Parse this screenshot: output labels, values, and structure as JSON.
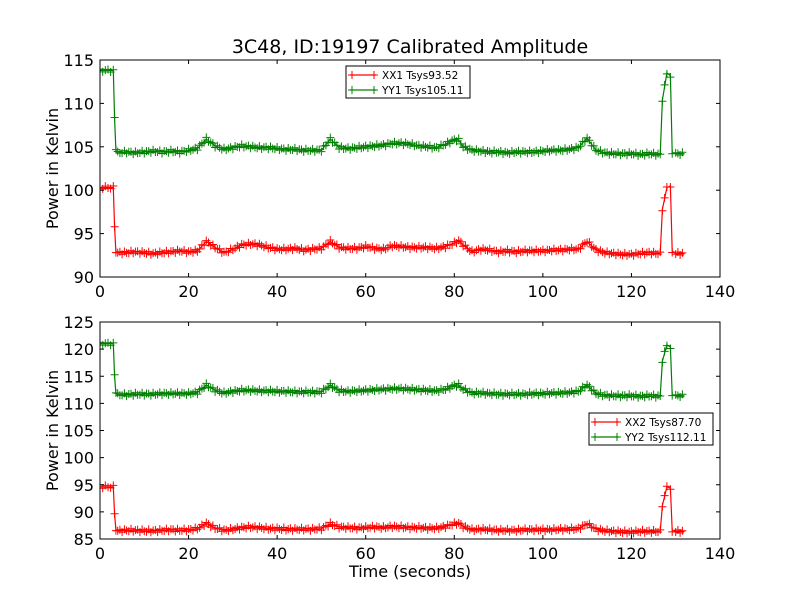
{
  "figure": {
    "title": "3C48, ID:19197 Calibrated Amplitude",
    "xlabel": "Time (seconds)"
  },
  "chart_data": [
    {
      "type": "line",
      "title": "3C48, ID:19197 Calibrated Amplitude",
      "xlabel": "",
      "ylabel": "Power in Kelvin",
      "xlim": [
        0,
        140
      ],
      "ylim": [
        90,
        115
      ],
      "xticks": [
        0,
        20,
        40,
        60,
        80,
        100,
        120,
        140
      ],
      "yticks": [
        90,
        95,
        100,
        105,
        110,
        115
      ],
      "grid": false,
      "legend": "top-center",
      "marker": "+",
      "series": [
        {
          "name": "XX1 Tsys93.52",
          "color": "#ff0000",
          "x": [
            0,
            3,
            3.3,
            3.6,
            4,
            6,
            8,
            10,
            12,
            14,
            16,
            18,
            20,
            22,
            24,
            26,
            28,
            30,
            32,
            34,
            36,
            38,
            40,
            42,
            44,
            46,
            48,
            50,
            52,
            54,
            56,
            58,
            60,
            62,
            64,
            66,
            68,
            70,
            72,
            74,
            76,
            78,
            80,
            81,
            82,
            84,
            86,
            88,
            90,
            92,
            94,
            96,
            98,
            100,
            102,
            104,
            106,
            108,
            110,
            112,
            114,
            116,
            118,
            120,
            122,
            124,
            126.5,
            127,
            128,
            128.8,
            129.2,
            130,
            132
          ],
          "y": [
            100.3,
            100.3,
            95.7,
            92.9,
            92.8,
            92.8,
            92.9,
            92.8,
            92.7,
            92.8,
            92.9,
            93.0,
            92.9,
            93.0,
            94.1,
            93.4,
            92.8,
            93.2,
            93.7,
            93.8,
            93.7,
            93.4,
            93.2,
            93.2,
            93.3,
            93.1,
            93.2,
            93.3,
            94.1,
            93.4,
            93.3,
            93.3,
            93.5,
            93.3,
            93.2,
            93.6,
            93.5,
            93.4,
            93.4,
            93.4,
            93.3,
            93.5,
            93.9,
            94.2,
            93.7,
            92.9,
            93.2,
            93.1,
            92.9,
            93.0,
            92.9,
            93.0,
            93.0,
            93.0,
            93.1,
            93.1,
            93.2,
            93.2,
            94.1,
            93.1,
            92.8,
            92.7,
            92.6,
            92.6,
            92.7,
            92.8,
            92.7,
            97.8,
            100.3,
            100.5,
            93.0,
            92.7,
            92.7
          ]
        },
        {
          "name": "YY1 Tsys105.11",
          "color": "#008000",
          "x": [
            0,
            3,
            3.3,
            3.6,
            4,
            6,
            8,
            10,
            12,
            14,
            16,
            18,
            20,
            22,
            24,
            26,
            28,
            30,
            32,
            34,
            36,
            38,
            40,
            42,
            44,
            46,
            48,
            50,
            52,
            54,
            56,
            58,
            60,
            62,
            64,
            66,
            68,
            70,
            72,
            74,
            76,
            78,
            80,
            81,
            82,
            84,
            86,
            88,
            90,
            92,
            94,
            96,
            98,
            100,
            102,
            104,
            106,
            108,
            110,
            112,
            114,
            116,
            118,
            120,
            122,
            124,
            126.5,
            127,
            128,
            128.8,
            129.2,
            130,
            132
          ],
          "y": [
            113.8,
            113.8,
            108.2,
            104.6,
            104.3,
            104.4,
            104.3,
            104.4,
            104.5,
            104.4,
            104.5,
            104.4,
            104.6,
            104.8,
            105.9,
            105.1,
            104.7,
            104.9,
            105.1,
            105.0,
            104.9,
            104.9,
            104.8,
            104.7,
            104.7,
            104.6,
            104.6,
            104.6,
            105.9,
            104.9,
            104.8,
            104.9,
            105.0,
            105.1,
            105.2,
            105.4,
            105.4,
            105.3,
            105.1,
            105.0,
            104.9,
            105.3,
            105.8,
            105.8,
            105.0,
            104.6,
            104.5,
            104.4,
            104.4,
            104.3,
            104.4,
            104.4,
            104.4,
            104.5,
            104.6,
            104.6,
            104.7,
            104.9,
            106.0,
            104.6,
            104.3,
            104.2,
            104.2,
            104.2,
            104.1,
            104.2,
            104.1,
            110.4,
            113.5,
            113.2,
            104.3,
            104.2,
            104.2
          ]
        }
      ]
    },
    {
      "type": "line",
      "title": "",
      "xlabel": "Time (seconds)",
      "ylabel": "Power in Kelvin",
      "xlim": [
        0,
        140
      ],
      "ylim": [
        85,
        125
      ],
      "xticks": [
        0,
        20,
        40,
        60,
        80,
        100,
        120,
        140
      ],
      "yticks": [
        85,
        90,
        95,
        100,
        105,
        110,
        115,
        120,
        125
      ],
      "grid": false,
      "legend": "center-right",
      "marker": "+",
      "series": [
        {
          "name": "XX2 Tsys87.70",
          "color": "#ff0000",
          "x": [
            0,
            3,
            3.3,
            3.6,
            4,
            6,
            8,
            10,
            12,
            14,
            16,
            18,
            20,
            22,
            24,
            26,
            28,
            30,
            32,
            34,
            36,
            38,
            40,
            42,
            44,
            46,
            48,
            50,
            52,
            54,
            56,
            58,
            60,
            62,
            64,
            66,
            68,
            70,
            72,
            74,
            76,
            78,
            80,
            81,
            82,
            84,
            86,
            88,
            90,
            92,
            94,
            96,
            98,
            100,
            102,
            104,
            106,
            108,
            110,
            112,
            114,
            116,
            118,
            120,
            122,
            124,
            126.5,
            127,
            128,
            128.8,
            129.2,
            130,
            132
          ],
          "y": [
            94.6,
            94.6,
            89.5,
            86.7,
            86.5,
            86.6,
            86.6,
            86.5,
            86.5,
            86.6,
            86.7,
            86.6,
            86.7,
            86.9,
            87.9,
            87.0,
            86.6,
            86.8,
            87.1,
            87.2,
            87.1,
            86.9,
            86.9,
            86.8,
            86.8,
            86.8,
            86.8,
            86.9,
            87.8,
            87.2,
            87.1,
            87.0,
            87.1,
            87.2,
            87.1,
            87.3,
            87.2,
            87.1,
            87.1,
            87.0,
            87.0,
            87.3,
            87.8,
            87.9,
            87.3,
            86.7,
            86.8,
            86.7,
            86.6,
            86.6,
            86.6,
            86.7,
            86.7,
            86.7,
            86.7,
            86.8,
            86.8,
            86.9,
            87.8,
            86.8,
            86.5,
            86.4,
            86.3,
            86.3,
            86.4,
            86.4,
            86.4,
            91.2,
            94.6,
            94.4,
            86.6,
            86.4,
            86.4
          ]
        },
        {
          "name": "YY2 Tsys112.11",
          "color": "#008000",
          "x": [
            0,
            3,
            3.3,
            3.6,
            4,
            6,
            8,
            10,
            12,
            14,
            16,
            18,
            20,
            22,
            24,
            26,
            28,
            30,
            32,
            34,
            36,
            38,
            40,
            42,
            44,
            46,
            48,
            50,
            52,
            54,
            56,
            58,
            60,
            62,
            64,
            66,
            68,
            70,
            72,
            74,
            76,
            78,
            80,
            81,
            82,
            84,
            86,
            88,
            90,
            92,
            94,
            96,
            98,
            100,
            102,
            104,
            106,
            108,
            110,
            112,
            114,
            116,
            118,
            120,
            122,
            124,
            126.5,
            127,
            128,
            128.8,
            129.2,
            130,
            132
          ],
          "y": [
            121.0,
            121.0,
            115.0,
            111.8,
            111.6,
            111.6,
            111.7,
            111.7,
            111.7,
            111.8,
            111.8,
            111.8,
            111.8,
            112.0,
            113.4,
            112.4,
            111.9,
            112.2,
            112.4,
            112.4,
            112.3,
            112.3,
            112.2,
            112.2,
            112.1,
            112.1,
            112.1,
            112.1,
            113.4,
            112.3,
            112.2,
            112.3,
            112.4,
            112.5,
            112.6,
            112.7,
            112.7,
            112.6,
            112.5,
            112.4,
            112.3,
            112.6,
            113.3,
            113.4,
            112.6,
            111.9,
            111.9,
            111.8,
            111.7,
            111.7,
            111.7,
            111.7,
            111.8,
            111.8,
            111.9,
            111.9,
            112.0,
            112.2,
            113.4,
            111.8,
            111.5,
            111.4,
            111.4,
            111.4,
            111.3,
            111.4,
            111.3,
            117.8,
            120.8,
            120.4,
            111.6,
            111.4,
            111.4
          ]
        }
      ]
    }
  ]
}
